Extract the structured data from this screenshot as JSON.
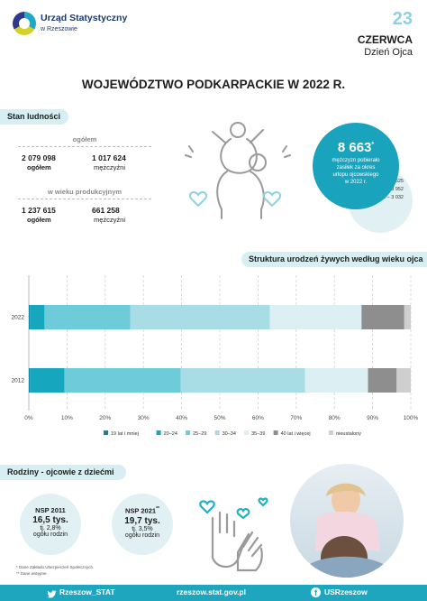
{
  "header": {
    "org_line1": "Urząd Statystyczny",
    "org_line2": "w Rzeszowie",
    "day": "23",
    "month": "CZERWCA",
    "occasion": "Dzień Ojca"
  },
  "title": "WOJEWÓDZTWO PODKARPACKIE W 2022 R.",
  "population": {
    "section": "Stan ludności",
    "total_head": "ogółem",
    "total_all_value": "2 079 098",
    "total_all_label": "ogółem",
    "total_men_value": "1 017 624",
    "total_men_label": "mężczyźni",
    "working_head": "w wieku produkcyjnym",
    "working_all_value": "1 237 615",
    "working_all_label": "ogółem",
    "working_men_value": "661 258",
    "working_men_label": "mężczyźni"
  },
  "allowance": {
    "value": "8 663",
    "marker": "*",
    "line1": "mężczyzn pobierało",
    "line2": "zasiłek za okres",
    "line3": "urlopu ojcowskiego",
    "line4": "w 2022 r.",
    "hist1": "2021 r. – 8 625",
    "hist2": "2020 r. – 8 952",
    "hist3": "2019 r. – 3 032"
  },
  "chart_section": "Struktura urodzeń żywych według wieku ojca",
  "chart_data": {
    "type": "bar",
    "stacked": true,
    "orientation": "horizontal",
    "percent": true,
    "categories": [
      "2022",
      "2012"
    ],
    "xlim": [
      0,
      100
    ],
    "xticks": [
      "0%",
      "10%",
      "20%",
      "30%",
      "40%",
      "50%",
      "60%",
      "70%",
      "80%",
      "90%",
      "100%"
    ],
    "series": [
      {
        "name": "19 lat i mniej",
        "color": "#1385a6",
        "values": [
          0.3,
          0.3
        ]
      },
      {
        "name": "20–24",
        "color": "#16a7bf",
        "values": [
          3.8,
          9.0
        ]
      },
      {
        "name": "25–29",
        "color": "#6ecbd9",
        "values": [
          22.5,
          30.5
        ]
      },
      {
        "name": "30–34",
        "color": "#a8dde6",
        "values": [
          36.5,
          32.5
        ]
      },
      {
        "name": "35–39",
        "color": "#dcf0f3",
        "values": [
          24.0,
          16.5
        ]
      },
      {
        "name": "40 lat i więcej",
        "color": "#8e8e8e",
        "values": [
          11.2,
          7.5
        ]
      },
      {
        "name": "nieustalony",
        "color": "#cfcfcf",
        "values": [
          1.7,
          3.7
        ]
      }
    ]
  },
  "families": {
    "section": "Rodziny - ojcowie z dziećmi",
    "nsp2011_head": "NSP 2011",
    "nsp2011_value": "16,5 tys.",
    "nsp2011_share": "tj. 2,8%",
    "nsp2011_base": "ogółu rodzin",
    "nsp2021_head": "NSP 2021",
    "nsp2021_marker": "**",
    "nsp2021_value": "19,7 tys.",
    "nsp2021_share": "tj. 3,5%",
    "nsp2021_base": "ogółu rodzin",
    "note1": "* Dane Zakładu Ubezpieczeń Społecznych.",
    "note2": "** Dane wstępne."
  },
  "footer": {
    "twitter": "Rzeszow_STAT",
    "site": "rzeszow.stat.gov.pl",
    "facebook": "USRzeszow"
  }
}
